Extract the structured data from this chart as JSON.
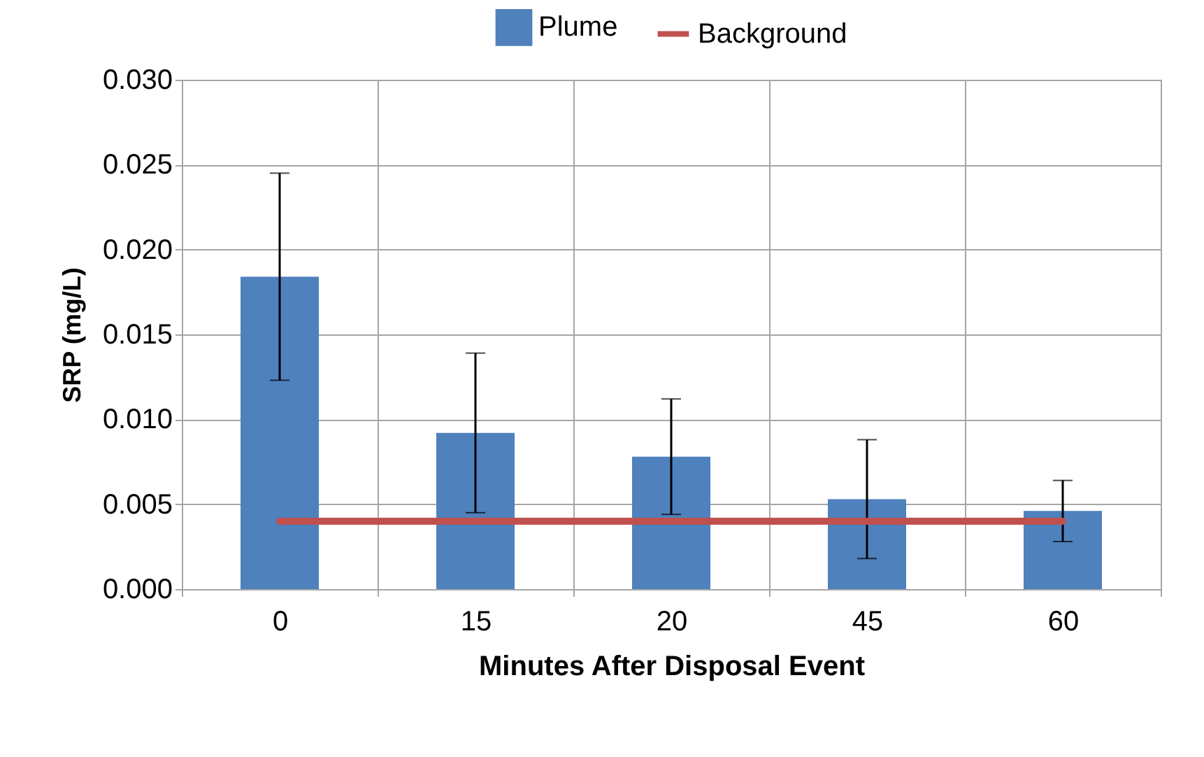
{
  "chart_data": {
    "type": "bar",
    "xlabel": "Minutes After Disposal Event",
    "ylabel": "SRP (mg/L)",
    "categories": [
      "0",
      "15",
      "20",
      "45",
      "60"
    ],
    "series": [
      {
        "name": "Plume",
        "color": "#4f81bd",
        "values": [
          0.0184,
          0.0092,
          0.0078,
          0.0053,
          0.0046
        ],
        "errors": [
          0.0061,
          0.0047,
          0.0034,
          0.0035,
          0.0018
        ]
      },
      {
        "name": "Background",
        "type": "line",
        "color": "#c0504d",
        "values": [
          0.004,
          0.004,
          0.004,
          0.004,
          0.004
        ]
      }
    ],
    "ylim": [
      0,
      0.03
    ],
    "yticks": [
      {
        "value": 0,
        "label": "0.000"
      },
      {
        "value": 0.005,
        "label": "0.005"
      },
      {
        "value": 0.01,
        "label": "0.010"
      },
      {
        "value": 0.015,
        "label": "0.015"
      },
      {
        "value": 0.02,
        "label": "0.020"
      },
      {
        "value": 0.025,
        "label": "0.025"
      },
      {
        "value": 0.03,
        "label": "0.030"
      }
    ],
    "grid": true,
    "legend": "top"
  }
}
